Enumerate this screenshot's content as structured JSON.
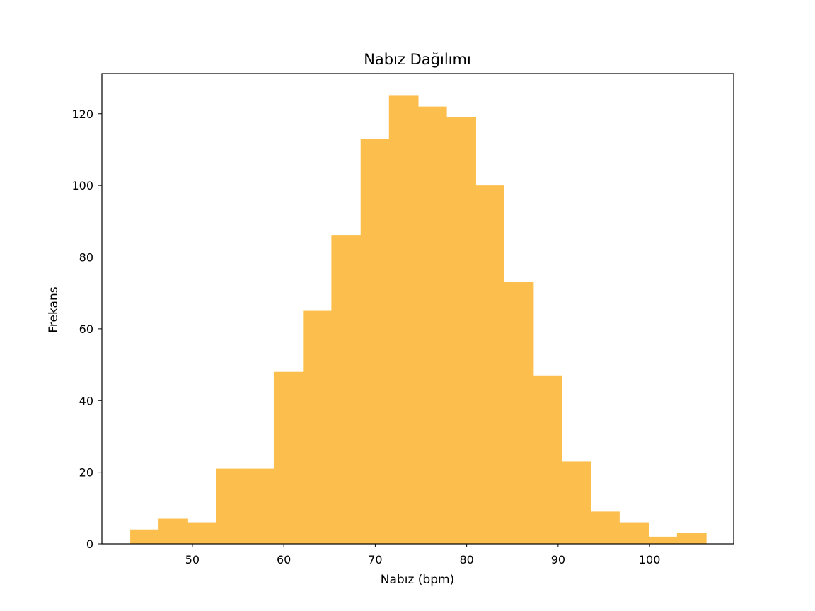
{
  "chart_data": {
    "type": "bar",
    "title": "Nabız Dağılımı",
    "xlabel": "Nabız (bpm)",
    "ylabel": "Frekans",
    "xlim": [
      40.1,
      109.2
    ],
    "ylim": [
      0,
      131.2
    ],
    "xticks": [
      50,
      60,
      70,
      80,
      90,
      100
    ],
    "yticks": [
      0,
      20,
      40,
      60,
      80,
      100,
      120
    ],
    "bin_edges": [
      43.2,
      46.3,
      49.5,
      52.6,
      55.8,
      58.9,
      62.1,
      65.2,
      68.4,
      71.5,
      74.7,
      77.8,
      81.0,
      84.1,
      87.3,
      90.4,
      93.6,
      96.7,
      99.9,
      103.0,
      106.2
    ],
    "values": [
      4,
      7,
      6,
      21,
      21,
      48,
      65,
      86,
      113,
      125,
      122,
      119,
      100,
      73,
      47,
      23,
      9,
      6,
      2,
      3
    ],
    "color": "#fcbf4d",
    "grid": false,
    "legend": false
  }
}
